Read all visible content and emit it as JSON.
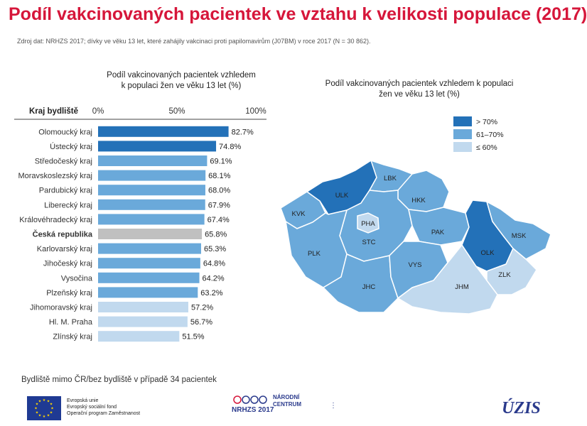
{
  "header": {
    "title": "Podíl vakcinovaných pacientek ve vztahu k velikosti populace (2017)",
    "source": "Zdroj dat: NRHZS 2017; dívky ve věku 13 let, které zahájily vakcinaci proti papilomavirům (J07BM) v roce 2017 (N = 30 862)."
  },
  "bar_chart": {
    "title_line1": "Podíl vakcinovaných pacientek vzhledem",
    "title_line2": "k populaci žen ve věku 13 let (%)"
  },
  "map_chart": {
    "title_line1": "Podíl vakcinovaných pacientek vzhledem k populaci",
    "title_line2": "žen ve věku 13 let (%)"
  },
  "note": "Bydliště mimo ČR/bez bydliště v případě 34 pacientek",
  "footer": {
    "eu_line1": "Evropská unie",
    "eu_line2": "Evropský sociální fond",
    "eu_line3": "Operační program Zaměstnanost",
    "nrhzs": "NRHZS 2017",
    "narodni_line1": "NÁRODNÍ",
    "narodni_line2": "CENTRUM",
    "uzis": "ÚZIS"
  },
  "colors": {
    "title": "#d6163a",
    "high": "#2371b8",
    "mid": "#6aa9da",
    "low": "#c1d9ee",
    "national": "#c0c0c0"
  },
  "chart_data": [
    {
      "type": "bar",
      "orientation": "horizontal",
      "title": "Podíl vakcinovaných pacientek vzhledem k populaci žen ve věku 13 let (%)",
      "category_header": "Kraj bydliště",
      "xlim": [
        0,
        100
      ],
      "x_ticks": [
        "0%",
        "50%",
        "100%"
      ],
      "categories": [
        "Olomoucký kraj",
        "Ústecký kraj",
        "Středočeský kraj",
        "Moravskoslezský kraj",
        "Pardubický kraj",
        "Liberecký kraj",
        "Královéhradecký kraj",
        "Česká republika",
        "Karlovarský kraj",
        "Jihočeský kraj",
        "Vysočina",
        "Plzeňský kraj",
        "Jihomoravský kraj",
        "Hl. M. Praha",
        "Zlínský kraj"
      ],
      "values": [
        82.7,
        74.8,
        69.1,
        68.1,
        68.0,
        67.9,
        67.4,
        65.8,
        65.3,
        64.8,
        64.2,
        63.2,
        57.2,
        56.7,
        51.5
      ],
      "value_labels": [
        "82.7%",
        "74.8%",
        "69.1%",
        "68.1%",
        "68.0%",
        "67.9%",
        "67.4%",
        "65.8%",
        "65.3%",
        "64.8%",
        "64.2%",
        "63.2%",
        "57.2%",
        "56.7%",
        "51.5%"
      ],
      "color_classes": [
        "high",
        "high",
        "mid",
        "mid",
        "mid",
        "mid",
        "mid",
        "national",
        "mid",
        "mid",
        "mid",
        "mid",
        "low",
        "low",
        "low"
      ],
      "bold_categories": [
        "Česká republika"
      ],
      "grid": false
    },
    {
      "type": "choropleth",
      "title": "Podíl vakcinovaných pacientek vzhledem k populaci žen ve věku 13 let (%)",
      "legend": [
        {
          "label": "> 70%",
          "class": "high"
        },
        {
          "label": "61–70%",
          "class": "mid"
        },
        {
          "label": "≤ 60%",
          "class": "low"
        }
      ],
      "legend_position": "top-right",
      "regions": [
        {
          "code": "KVK",
          "class": "mid"
        },
        {
          "code": "ULK",
          "class": "high"
        },
        {
          "code": "LBK",
          "class": "mid"
        },
        {
          "code": "HKK",
          "class": "mid"
        },
        {
          "code": "PHA",
          "class": "low"
        },
        {
          "code": "STC",
          "class": "mid"
        },
        {
          "code": "PAK",
          "class": "mid"
        },
        {
          "code": "PLK",
          "class": "mid"
        },
        {
          "code": "JHC",
          "class": "mid"
        },
        {
          "code": "VYS",
          "class": "mid"
        },
        {
          "code": "OLK",
          "class": "high"
        },
        {
          "code": "MSK",
          "class": "mid"
        },
        {
          "code": "ZLK",
          "class": "low"
        },
        {
          "code": "JHM",
          "class": "low"
        }
      ]
    }
  ]
}
